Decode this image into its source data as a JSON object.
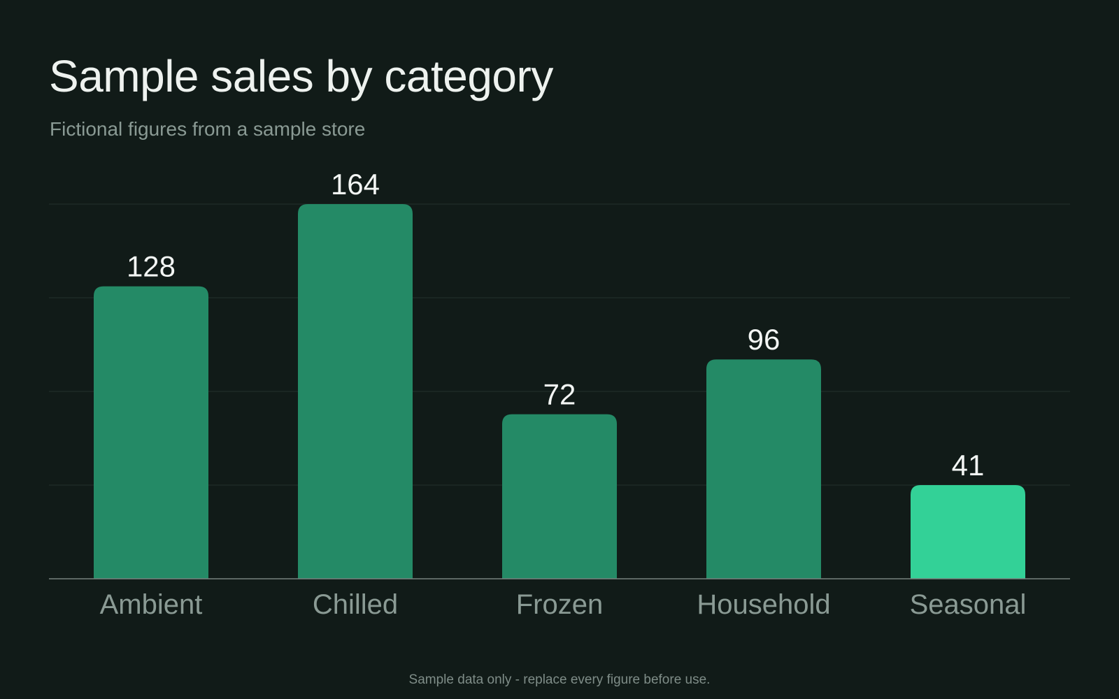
{
  "title": "Sample sales by category",
  "subtitle": "Fictional figures from a sample store",
  "footnote": "Sample data only - replace every figure before use.",
  "colors": {
    "background": "#111b18",
    "bar": "#248a66",
    "highlight": "#33d197",
    "gridline": "#24302c",
    "axis": "#77827e"
  },
  "chart_data": {
    "type": "bar",
    "categories": [
      "Ambient",
      "Chilled",
      "Frozen",
      "Household",
      "Seasonal"
    ],
    "values": [
      128,
      164,
      72,
      96,
      41
    ],
    "highlighted_category": "Seasonal",
    "ylim": [
      0,
      164
    ],
    "gridlines": [
      41,
      82,
      123,
      164
    ],
    "grid": true,
    "xlabel": "",
    "ylabel": ""
  }
}
